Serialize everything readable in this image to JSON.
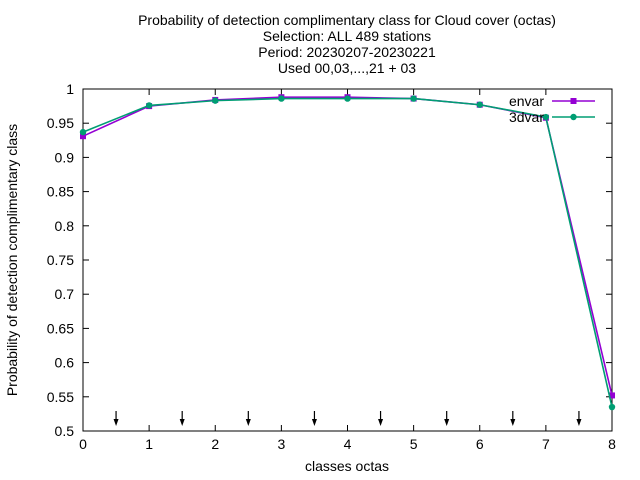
{
  "chart_data": {
    "type": "line",
    "title": [
      "Probability of detection complimentary class  for Cloud cover (octas)",
      "Selection: ALL    489 stations",
      "Period: 20230207-20230221",
      "Used 00,03,...,21 + 03"
    ],
    "xlabel": "classes octas",
    "ylabel": "Probability of detection complimentary class",
    "xlim": [
      0,
      8
    ],
    "ylim": [
      0.5,
      1.0
    ],
    "x_ticks": [
      0,
      1,
      2,
      3,
      4,
      5,
      6,
      7,
      8
    ],
    "y_ticks": [
      0.5,
      0.55,
      0.6,
      0.65,
      0.7,
      0.75,
      0.8,
      0.85,
      0.9,
      0.95,
      1
    ],
    "x_tick_labels": [
      "0",
      "1",
      "2",
      "3",
      "4",
      "5",
      "6",
      "7",
      "8"
    ],
    "y_tick_labels": [
      "0.5",
      "0.55",
      "0.6",
      "0.65",
      "0.7",
      "0.75",
      "0.8",
      "0.85",
      "0.9",
      "0.95",
      "1"
    ],
    "grid": false,
    "legend_position": "top-right",
    "arrow_markers_x": [
      0.5,
      1.5,
      2.5,
      3.5,
      4.5,
      5.5,
      6.5,
      7.5
    ],
    "x": [
      0,
      1,
      2,
      3,
      4,
      5,
      6,
      7,
      8
    ],
    "series": [
      {
        "name": "envar",
        "color": "#9400d3",
        "marker": "filled-square",
        "values": [
          0.931,
          0.975,
          0.984,
          0.988,
          0.988,
          0.986,
          0.977,
          0.958,
          0.552
        ]
      },
      {
        "name": "3dvar",
        "color": "#009e73",
        "marker": "filled-circle",
        "values": [
          0.937,
          0.976,
          0.983,
          0.986,
          0.986,
          0.986,
          0.977,
          0.959,
          0.535
        ]
      }
    ]
  }
}
